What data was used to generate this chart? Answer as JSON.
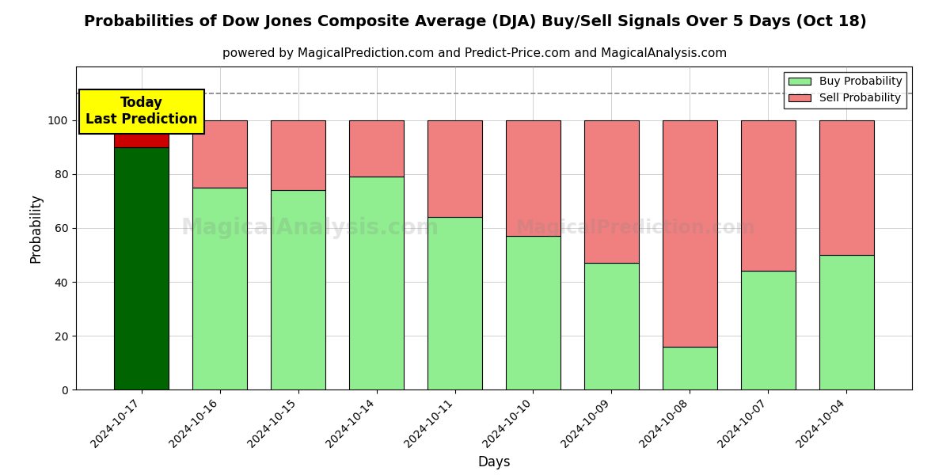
{
  "title": "Probabilities of Dow Jones Composite Average (DJA) Buy/Sell Signals Over 5 Days (Oct 18)",
  "subtitle": "powered by MagicalPrediction.com and Predict-Price.com and MagicalAnalysis.com",
  "xlabel": "Days",
  "ylabel": "Probability",
  "categories": [
    "2024-10-17",
    "2024-10-16",
    "2024-10-15",
    "2024-10-14",
    "2024-10-11",
    "2024-10-10",
    "2024-10-09",
    "2024-10-08",
    "2024-10-07",
    "2024-10-04"
  ],
  "buy_values": [
    90,
    75,
    74,
    79,
    64,
    57,
    47,
    16,
    44,
    50
  ],
  "sell_values": [
    10,
    25,
    26,
    21,
    36,
    43,
    53,
    84,
    56,
    50
  ],
  "buy_color_today": "#006400",
  "sell_color_today": "#cc0000",
  "buy_color_normal": "#90EE90",
  "sell_color_normal": "#F08080",
  "today_annotation": "Today\nLast Prediction",
  "annotation_bg": "#ffff00",
  "dashed_line_y": 110,
  "ylim": [
    0,
    120
  ],
  "yticks": [
    0,
    20,
    40,
    60,
    80,
    100
  ],
  "title_fontsize": 14,
  "subtitle_fontsize": 11,
  "legend_buy_label": "Buy Probability",
  "legend_sell_label": "Sell Probability",
  "figsize": [
    12.0,
    6.0
  ],
  "dpi": 100
}
